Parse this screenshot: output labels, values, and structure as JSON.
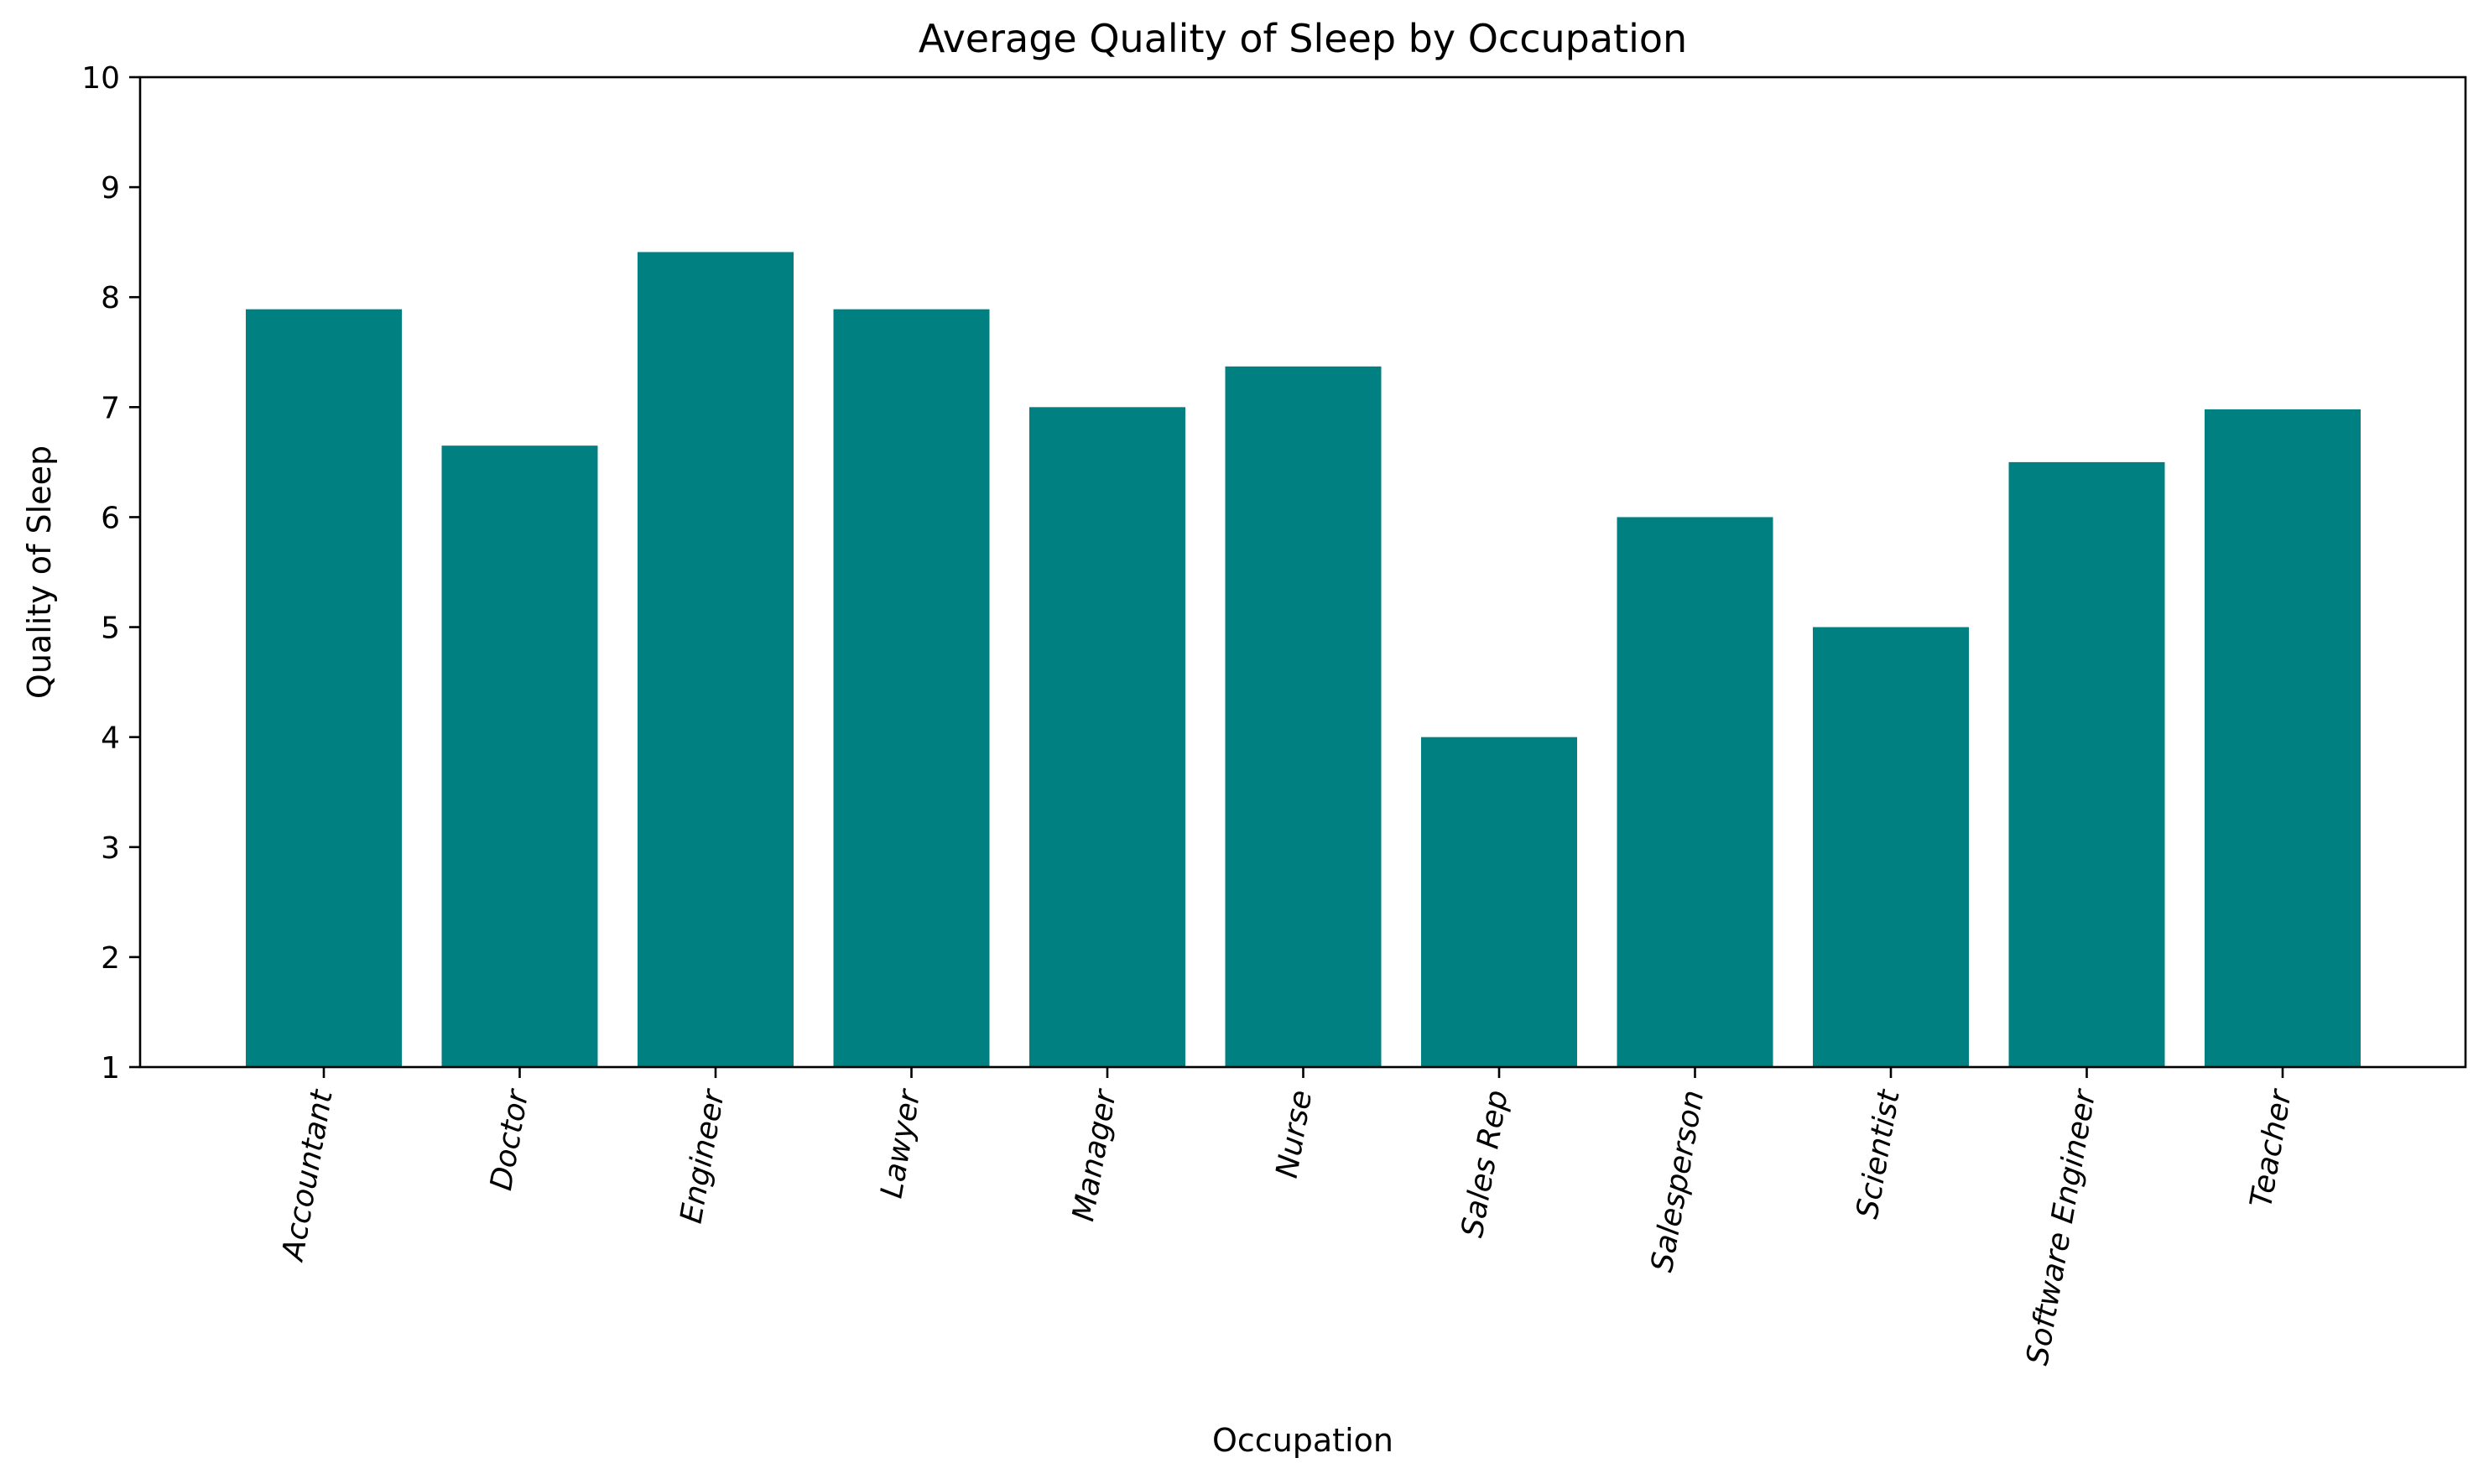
{
  "chart_data": {
    "type": "bar",
    "title": "Average Quality of Sleep by Occupation",
    "xlabel": "Occupation",
    "ylabel": "Quality of Sleep",
    "ylim": [
      1,
      10
    ],
    "yticks": [
      "1",
      "2",
      "3",
      "4",
      "5",
      "6",
      "7",
      "8",
      "9",
      "10"
    ],
    "grid": false,
    "legend": null,
    "bar_color": "#008080",
    "categories": [
      "Accountant",
      "Doctor",
      "Engineer",
      "Lawyer",
      "Manager",
      "Nurse",
      "Sales Rep",
      "Salesperson",
      "Scientist",
      "Software Engineer",
      "Teacher"
    ],
    "values": [
      7.89,
      6.65,
      8.41,
      7.89,
      7.0,
      7.37,
      4.0,
      6.0,
      5.0,
      6.5,
      6.98
    ]
  }
}
